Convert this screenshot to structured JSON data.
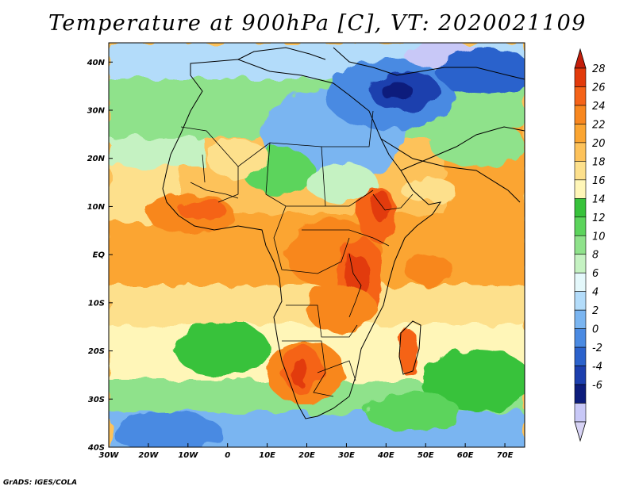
{
  "title": "Temperature at 900hPa [C], VT: 2020021109",
  "credit": "GrADS: IGES/COLA",
  "map": {
    "lat_labels": [
      "40N",
      "30N",
      "20N",
      "10N",
      "EQ",
      "10S",
      "20S",
      "30S",
      "40S"
    ],
    "lon_labels": [
      "30W",
      "20W",
      "10W",
      "0",
      "10E",
      "20E",
      "30E",
      "40E",
      "50E",
      "60E",
      "70E"
    ],
    "lat_range": [
      -40,
      44
    ],
    "lon_range": [
      -30,
      75
    ]
  },
  "colorbar": {
    "labels": [
      "28",
      "26",
      "24",
      "22",
      "20",
      "18",
      "16",
      "14",
      "12",
      "10",
      "8",
      "6",
      "4",
      "2",
      "0",
      "-2",
      "-4",
      "-6"
    ],
    "colors": [
      "#e23a0b",
      "#f56318",
      "#f8871f",
      "#fba531",
      "#fdc25a",
      "#fde08c",
      "#fff6b8",
      "#37c23b",
      "#5cd45c",
      "#8fe28b",
      "#c5f2c2",
      "#e4f8fb",
      "#b3dcfa",
      "#7ab5f1",
      "#4a8ae2",
      "#2b62cc",
      "#1c3fae",
      "#0d1d7c",
      "#c8c8f7"
    ],
    "top_arrow_color": "#c31e0b",
    "bottom_arrow_color": "#d7d3f5"
  }
}
